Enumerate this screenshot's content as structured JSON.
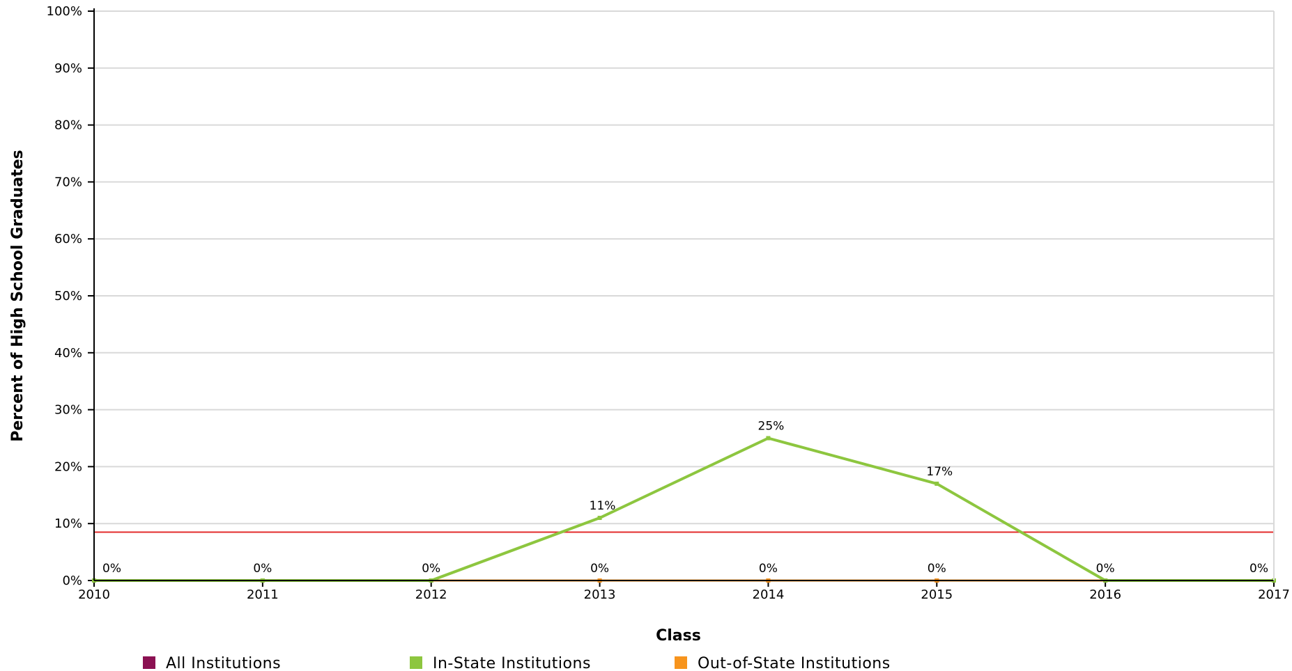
{
  "chart_data": {
    "type": "line",
    "xlabel": "Class",
    "ylabel": "Percent of High School Graduates",
    "x": [
      2010,
      2011,
      2012,
      2013,
      2014,
      2015,
      2016,
      2017
    ],
    "x_tick_labels": [
      "2010",
      "2011",
      "2012",
      "2013",
      "2014",
      "2015",
      "2016",
      "2017"
    ],
    "ylim": [
      0,
      100
    ],
    "y_tick_labels": [
      "0%",
      "10%",
      "20%",
      "30%",
      "40%",
      "50%",
      "60%",
      "70%",
      "80%",
      "90%",
      "100%"
    ],
    "grid": true,
    "legend_position": "bottom",
    "series": [
      {
        "name": "All Institutions",
        "color": "#8b1152",
        "values": [
          0,
          0,
          0,
          0,
          0,
          0,
          0,
          0
        ]
      },
      {
        "name": "In-State Institutions",
        "color": "#8dc63f",
        "values": [
          0,
          0,
          0,
          11,
          25,
          17,
          0,
          0
        ]
      },
      {
        "name": "Out-of-State Institutions",
        "color": "#f7941d",
        "values": [
          0,
          0,
          0,
          0,
          0,
          0,
          0,
          0
        ]
      }
    ],
    "data_labels": {
      "zero_row": [
        "0%",
        "0%",
        "0%",
        "0%",
        "0%",
        "0%",
        "0%",
        "0%"
      ],
      "peaks": [
        {
          "x": 2013,
          "y": 11,
          "text": "11%"
        },
        {
          "x": 2014,
          "y": 25,
          "text": "25%"
        },
        {
          "x": 2015,
          "y": 17,
          "text": "17%"
        }
      ]
    },
    "reference_line": {
      "y": 8.5,
      "color": "#e32b2b"
    }
  }
}
